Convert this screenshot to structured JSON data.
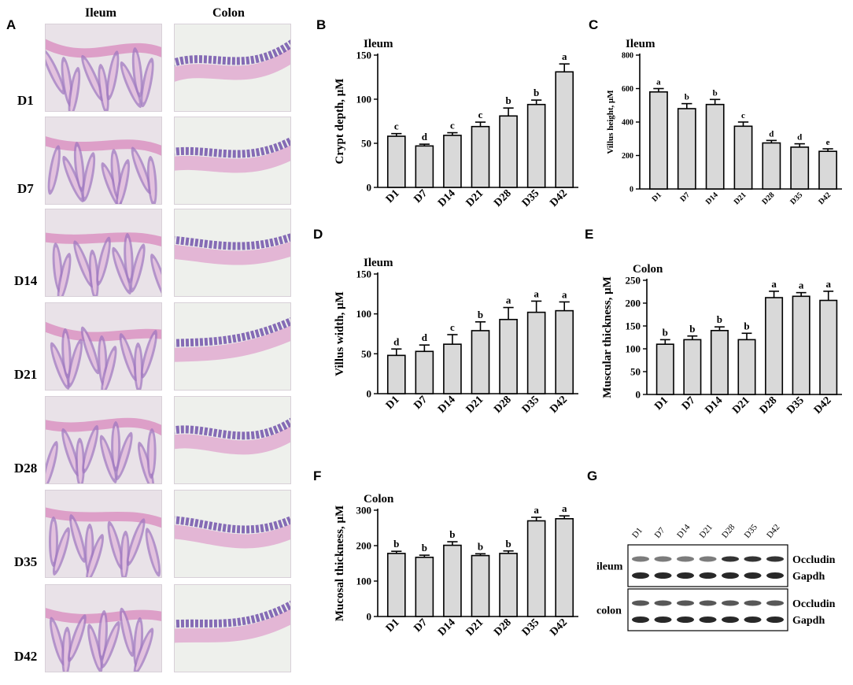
{
  "panel_labels": {
    "A": "A",
    "B": "B",
    "C": "C",
    "D": "D",
    "E": "E",
    "F": "F",
    "G": "G"
  },
  "histology": {
    "columns": [
      "Ileum",
      "Colon"
    ],
    "rows": [
      "D1",
      "D7",
      "D14",
      "D21",
      "D28",
      "D35",
      "D42"
    ]
  },
  "western_blot": {
    "lanes": [
      "D1",
      "D7",
      "D14",
      "D21",
      "D28",
      "D35",
      "D42"
    ],
    "groups": [
      {
        "label": "ileum",
        "bands": [
          "Occludin",
          "Gapdh"
        ]
      },
      {
        "label": "colon",
        "bands": [
          "Occludin",
          "Gapdh"
        ]
      }
    ]
  },
  "chart_data": [
    {
      "id": "B",
      "type": "bar",
      "title": "Ileum",
      "ylabel": "Crypt depth, μM",
      "categories": [
        "D1",
        "D7",
        "D14",
        "D21",
        "D28",
        "D35",
        "D42"
      ],
      "values": [
        58,
        47,
        59,
        69,
        81,
        94,
        131
      ],
      "errors": [
        3,
        2,
        3,
        5,
        9,
        5,
        9
      ],
      "letters": [
        "c",
        "d",
        "c",
        "c",
        "b",
        "b",
        "a"
      ],
      "ylim": [
        0,
        150
      ],
      "yticks": [
        0,
        50,
        100,
        150
      ],
      "style": "large"
    },
    {
      "id": "C",
      "type": "bar",
      "title": "Ileum",
      "ylabel": "Villus height, μM",
      "categories": [
        "D1",
        "D7",
        "D14",
        "D21",
        "D28",
        "D35",
        "D42"
      ],
      "values": [
        580,
        480,
        505,
        375,
        275,
        250,
        225
      ],
      "errors": [
        20,
        30,
        30,
        25,
        15,
        20,
        15
      ],
      "letters": [
        "a",
        "b",
        "b",
        "c",
        "d",
        "d",
        "e"
      ],
      "ylim": [
        0,
        800
      ],
      "yticks": [
        0,
        200,
        400,
        600,
        800
      ],
      "style": "small"
    },
    {
      "id": "D",
      "type": "bar",
      "title": "Ileum",
      "ylabel": "Villus width, μM",
      "categories": [
        "D1",
        "D7",
        "D14",
        "D21",
        "D28",
        "D35",
        "D42"
      ],
      "values": [
        48,
        53,
        62,
        79,
        93,
        102,
        104
      ],
      "errors": [
        8,
        8,
        12,
        11,
        15,
        14,
        11
      ],
      "letters": [
        "d",
        "d",
        "c",
        "b",
        "a",
        "a",
        "a"
      ],
      "ylim": [
        0,
        150
      ],
      "yticks": [
        0,
        50,
        100,
        150
      ],
      "style": "large"
    },
    {
      "id": "E",
      "type": "bar",
      "title": "Colon",
      "ylabel": "Muscular thickness, μM",
      "categories": [
        "D1",
        "D7",
        "D14",
        "D21",
        "D28",
        "D35",
        "D42"
      ],
      "values": [
        110,
        120,
        140,
        120,
        212,
        215,
        206
      ],
      "errors": [
        10,
        8,
        8,
        14,
        14,
        8,
        20
      ],
      "letters": [
        "b",
        "b",
        "b",
        "b",
        "a",
        "a",
        "a"
      ],
      "ylim": [
        0,
        250
      ],
      "yticks": [
        0,
        50,
        100,
        150,
        200,
        250
      ],
      "style": "large"
    },
    {
      "id": "F",
      "type": "bar",
      "title": "Colon",
      "ylabel": "Mucosal thickness, μM",
      "categories": [
        "D1",
        "D7",
        "D14",
        "D21",
        "D28",
        "D35",
        "D42"
      ],
      "values": [
        178,
        167,
        201,
        172,
        178,
        270,
        276
      ],
      "errors": [
        6,
        6,
        10,
        5,
        7,
        10,
        8
      ],
      "letters": [
        "b",
        "b",
        "b",
        "b",
        "b",
        "a",
        "a"
      ],
      "ylim": [
        0,
        300
      ],
      "yticks": [
        0,
        100,
        200,
        300
      ],
      "style": "large"
    }
  ]
}
